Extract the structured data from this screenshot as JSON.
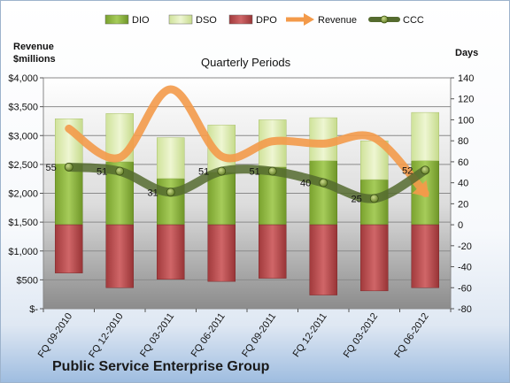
{
  "chart_data": {
    "type": "bar",
    "title": "Quarterly Periods",
    "company": "Public Service Enterprise Group",
    "left_axis_label": [
      "Revenue",
      "$millions"
    ],
    "right_axis_label": "Days",
    "left_axis": {
      "min": 0,
      "max": 4000,
      "step": 500,
      "ticks": [
        "$-",
        "$500",
        "$1,000",
        "$1,500",
        "$2,000",
        "$2,500",
        "$3,000",
        "$3,500",
        "$4,000"
      ]
    },
    "right_axis": {
      "min": -80,
      "max": 140,
      "step": 20,
      "ticks": [
        "-80",
        "-60",
        "-40",
        "-20",
        "0",
        "20",
        "40",
        "60",
        "80",
        "100",
        "120",
        "140"
      ]
    },
    "categories": [
      "FQ 09-2010",
      "FQ 12-2010",
      "FQ 03-2011",
      "FQ 06-2011",
      "FQ 09-2011",
      "FQ 12-2011",
      "FQ 03-2012",
      "FQ 06-2012"
    ],
    "series": [
      {
        "name": "DIO",
        "axis": "days",
        "values": [
          58,
          60,
          44,
          50,
          55,
          61,
          43,
          61
        ]
      },
      {
        "name": "DSO",
        "axis": "days",
        "values": [
          43,
          46,
          39,
          45,
          45,
          41,
          37,
          46
        ]
      },
      {
        "name": "DPO",
        "axis": "days",
        "values": [
          -46,
          -60,
          -52,
          -54,
          -51,
          -67,
          -63,
          -60
        ]
      },
      {
        "name": "Revenue",
        "axis": "revenue",
        "values": [
          3120,
          2620,
          3800,
          2640,
          2900,
          2860,
          2960,
          2000
        ]
      },
      {
        "name": "CCC",
        "axis": "days",
        "values": [
          55,
          51,
          31,
          51,
          51,
          40,
          25,
          52
        ]
      }
    ],
    "ccc_labels": [
      "55",
      "51",
      "31",
      "51",
      "51",
      "40",
      "25",
      "52"
    ],
    "colors": {
      "DIO": "#8cb43c",
      "DSO": "#dbeab0",
      "DPO": "#b8484a",
      "Revenue": "#f39a4a",
      "CCC": "#556b2f"
    },
    "legend": {
      "position": "top",
      "items": [
        {
          "name": "DIO",
          "marker": "box"
        },
        {
          "name": "DSO",
          "marker": "box"
        },
        {
          "name": "DPO",
          "marker": "box"
        },
        {
          "name": "Revenue",
          "marker": "arrow"
        },
        {
          "name": "CCC",
          "marker": "line-dot"
        }
      ]
    },
    "grid": true
  }
}
